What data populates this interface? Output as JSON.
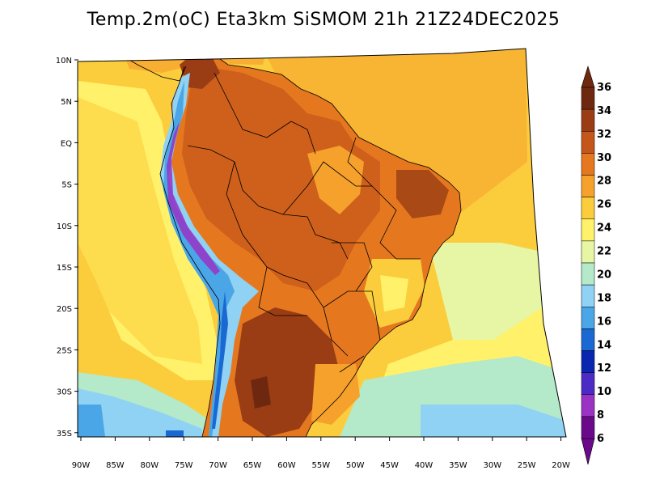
{
  "title": "Temp.2m(oC) Eta3km SiSMOM 21h 21Z24DEC2025",
  "lat_labels": [
    "10N",
    "5N",
    "EQ",
    "5S",
    "10S",
    "15S",
    "20S",
    "25S",
    "30S",
    "35S"
  ],
  "lon_labels": [
    "90W",
    "85W",
    "80W",
    "75W",
    "70W",
    "65W",
    "60W",
    "55W",
    "50W",
    "45W",
    "40W",
    "35W",
    "30W",
    "25W",
    "20W"
  ],
  "colorbar": {
    "labels": [
      "36",
      "34",
      "32",
      "30",
      "28",
      "26",
      "24",
      "22",
      "20",
      "18",
      "16",
      "14",
      "12",
      "10",
      "8",
      "6"
    ],
    "colors": [
      "#6e2810",
      "#9a3d14",
      "#c4561a",
      "#e5781f",
      "#f6a12c",
      "#fbcd3c",
      "#fff26a",
      "#e7f6a4",
      "#b4e9c9",
      "#8fd2f4",
      "#4aa6e6",
      "#1a68d2",
      "#0a26b0",
      "#4b2ac6",
      "#9a33c4",
      "#6a0a8a"
    ]
  },
  "palette": {
    "ocean_warm": "#fbcd3c",
    "ocean_mild": "#fff26a",
    "ocean_cool": "#e7f6a4",
    "ocean_cold": "#8fd2f4",
    "land_hot": "#e5781f",
    "land_very_hot": "#c4561a",
    "land_extreme": "#9a3d14",
    "andes_cold": "#4aa6e6",
    "andes_very_cold": "#9a33c4",
    "border": "#000000"
  }
}
